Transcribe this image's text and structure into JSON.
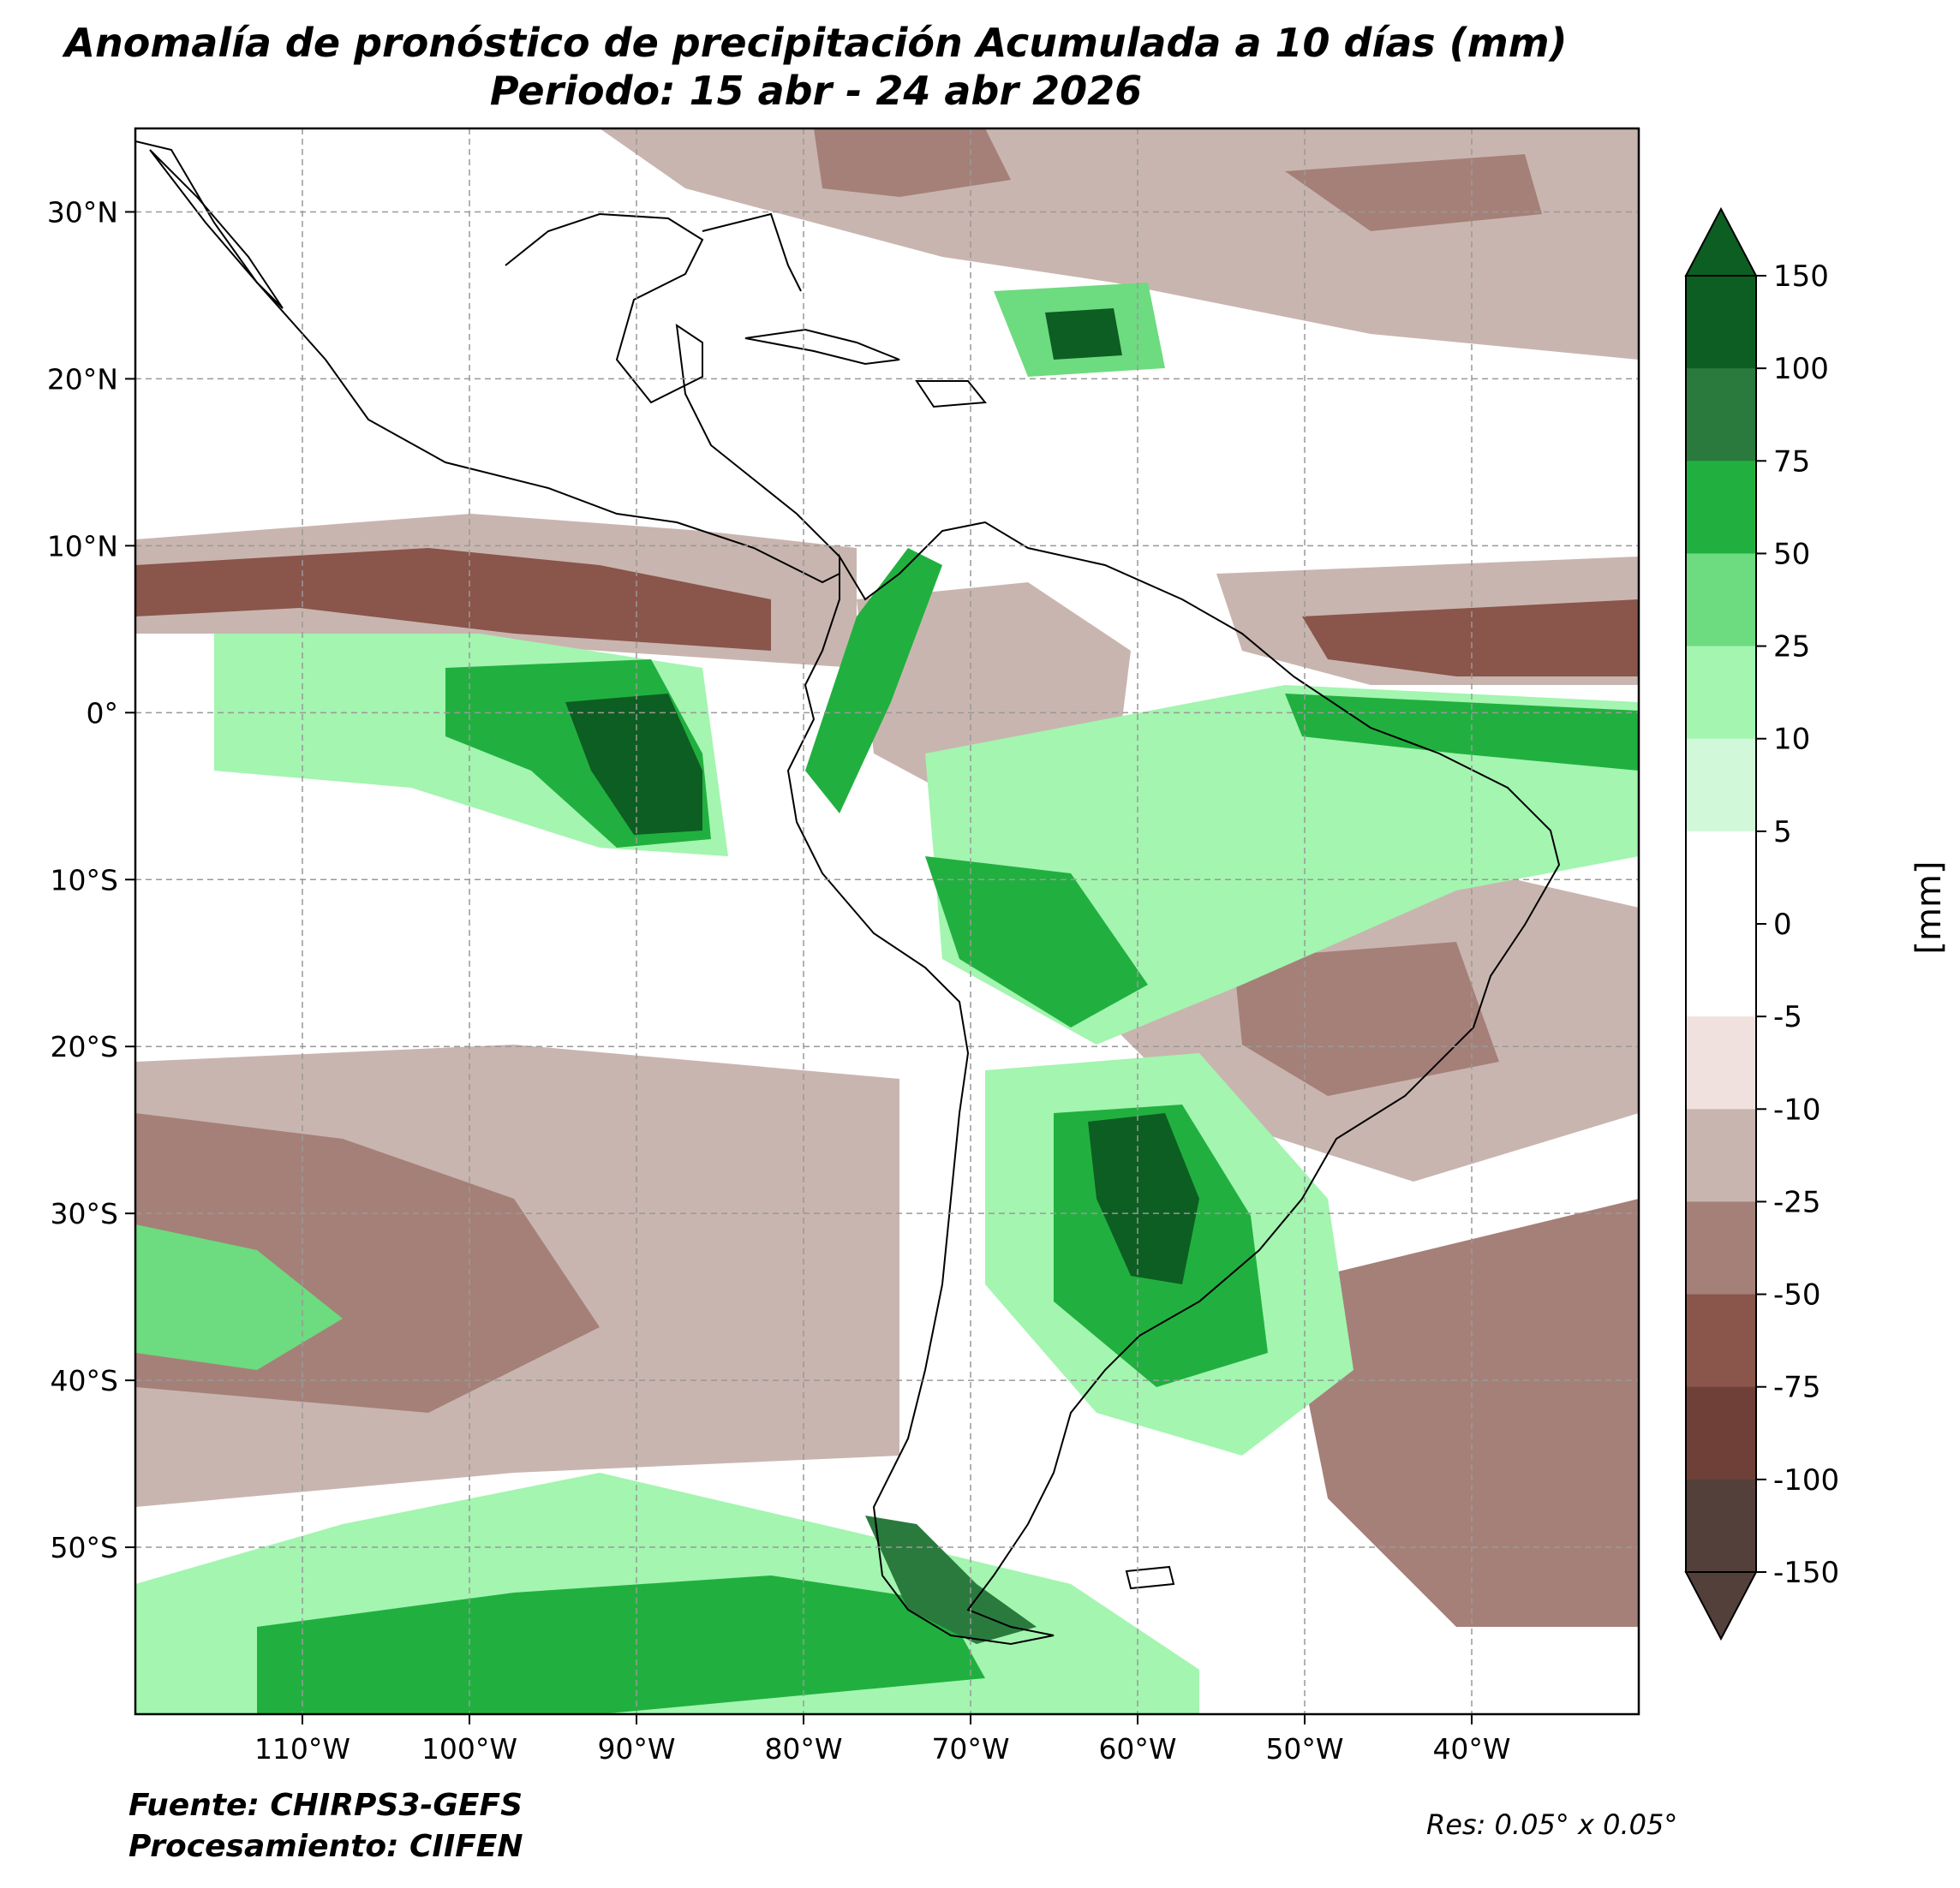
{
  "title": {
    "line1": "Anomalía de pronóstico de precipitación Acumulada a 10 días (mm)",
    "line2": "Periodo: 15 abr - 24 abr 2026"
  },
  "map": {
    "lon_range": [
      -120,
      -30
    ],
    "lat_range": [
      -60,
      35
    ],
    "lat_ticks": [
      {
        "value": 30,
        "label": "30°N"
      },
      {
        "value": 20,
        "label": "20°N"
      },
      {
        "value": 10,
        "label": "10°N"
      },
      {
        "value": 0,
        "label": "0°"
      },
      {
        "value": -10,
        "label": "10°S"
      },
      {
        "value": -20,
        "label": "20°S"
      },
      {
        "value": -30,
        "label": "30°S"
      },
      {
        "value": -40,
        "label": "40°S"
      },
      {
        "value": -50,
        "label": "50°S"
      }
    ],
    "lon_ticks": [
      {
        "value": -110,
        "label": "110°W"
      },
      {
        "value": -100,
        "label": "100°W"
      },
      {
        "value": -90,
        "label": "90°W"
      },
      {
        "value": -80,
        "label": "80°W"
      },
      {
        "value": -70,
        "label": "70°W"
      },
      {
        "value": -60,
        "label": "60°W"
      },
      {
        "value": -50,
        "label": "50°W"
      },
      {
        "value": -40,
        "label": "40°W"
      }
    ],
    "grid": true
  },
  "colorbar": {
    "label": "[mm]",
    "extend": "both",
    "levels": [
      {
        "label": "150"
      },
      {
        "label": "100"
      },
      {
        "label": "75"
      },
      {
        "label": "50"
      },
      {
        "label": "25"
      },
      {
        "label": "10"
      },
      {
        "label": "5"
      },
      {
        "label": "0"
      },
      {
        "label": "-5"
      },
      {
        "label": "-10"
      },
      {
        "label": "-25"
      },
      {
        "label": "-50"
      },
      {
        "label": "-75"
      },
      {
        "label": "-100"
      },
      {
        "label": "-150"
      }
    ],
    "colors": [
      "#0d5e22",
      "#2a7a3e",
      "#21b03f",
      "#6ddb7f",
      "#a3f5b0",
      "#d1f8d8",
      "#ffffff",
      "#ffffff",
      "#f0e1de",
      "#c9b5af",
      "#a58078",
      "#8a554a",
      "#6e4037",
      "#54403a"
    ],
    "over_color": "#0d5e22",
    "under_color": "#54403a"
  },
  "footer": {
    "source": "Fuente: CHIRPS3-GEFS",
    "processing": "Procesamiento: CIIFEN",
    "resolution": "Res: 0.05° x 0.05°"
  }
}
